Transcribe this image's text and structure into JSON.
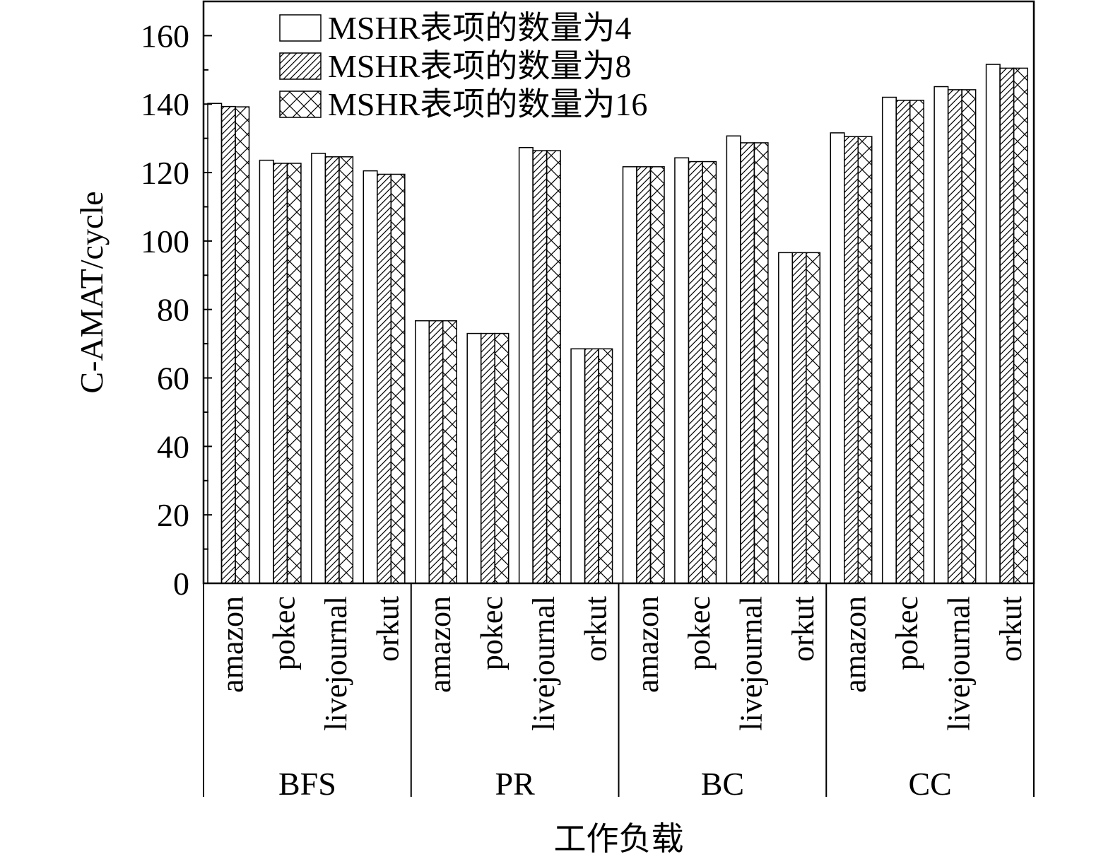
{
  "chart_data": {
    "type": "bar",
    "ylabel": "C-AMAT/cycle",
    "xlabel": "工作负载",
    "ylim": [
      0,
      170
    ],
    "yticks": [
      0,
      20,
      40,
      60,
      80,
      100,
      120,
      140,
      160
    ],
    "groups": [
      {
        "name": "BFS",
        "categories": [
          "amazon",
          "pokec",
          "livejournal",
          "orkut"
        ]
      },
      {
        "name": "PR",
        "categories": [
          "amazon",
          "pokec",
          "livejournal",
          "orkut"
        ]
      },
      {
        "name": "BC",
        "categories": [
          "amazon",
          "pokec",
          "livejournal",
          "orkut"
        ]
      },
      {
        "name": "CC",
        "categories": [
          "amazon",
          "pokec",
          "livejournal",
          "orkut"
        ]
      }
    ],
    "series": [
      {
        "name": "MSHR表项的数量为4",
        "pattern": "none",
        "values": [
          140.2,
          123.6,
          125.6,
          120.5,
          76.7,
          73.0,
          127.3,
          68.5,
          121.7,
          124.3,
          130.7,
          96.6,
          131.6,
          142.0,
          145.1,
          151.6
        ]
      },
      {
        "name": "MSHR表项的数量为8",
        "pattern": "diagonal",
        "values": [
          139.3,
          122.7,
          124.6,
          119.5,
          76.7,
          73.0,
          126.4,
          68.5,
          121.7,
          123.2,
          128.7,
          96.6,
          130.5,
          141.1,
          144.2,
          150.5
        ]
      },
      {
        "name": "MSHR表项的数量为16",
        "pattern": "crosshatch",
        "values": [
          139.2,
          122.7,
          124.6,
          119.5,
          76.7,
          73.0,
          126.4,
          68.5,
          121.7,
          123.2,
          128.7,
          96.6,
          130.5,
          141.1,
          144.2,
          150.5
        ]
      }
    ],
    "legend_position": "top-left",
    "grid": false
  }
}
